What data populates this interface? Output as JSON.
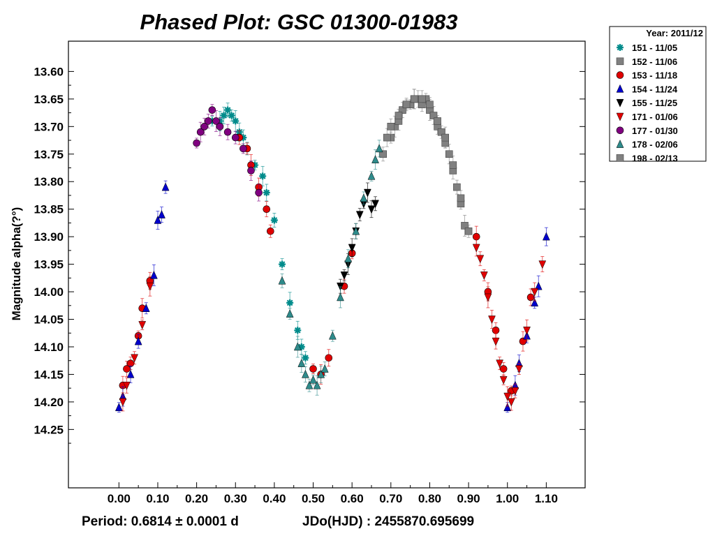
{
  "chart_data": {
    "type": "scatter",
    "title": "Phased Plot: GSC 01300-01983",
    "xlabel": "",
    "ylabel": "Magnitude alpha(?°)",
    "xlim": [
      -0.13,
      1.2
    ],
    "ylim": [
      14.356,
      13.545
    ],
    "y_inverted": true,
    "x_ticks": [
      "0.00",
      "0.10",
      "0.20",
      "0.30",
      "0.40",
      "0.50",
      "0.60",
      "0.70",
      "0.80",
      "0.90",
      "1.00",
      "1.10"
    ],
    "y_ticks": [
      "13.60",
      "13.65",
      "13.70",
      "13.75",
      "13.80",
      "13.85",
      "13.90",
      "13.95",
      "14.00",
      "14.05",
      "14.10",
      "14.15",
      "14.20",
      "14.25"
    ],
    "legend_title": "Year: 2011/12",
    "legend_position": "outside-top-right",
    "footer_period": "Period: 0.6814 ± 0.0001 d",
    "footer_epoch": "JDo(HJD) : 2455870.695699",
    "grid": false,
    "series": [
      {
        "name": "151 - 11/05",
        "marker": "asterisk",
        "color": "#008b8b",
        "x": [
          0.24,
          0.26,
          0.27,
          0.28,
          0.29,
          0.3,
          0.31,
          0.32,
          0.33,
          0.35,
          0.37,
          0.38,
          0.4,
          0.42,
          0.44,
          0.46,
          0.47,
          0.48
        ],
        "y": [
          13.69,
          13.69,
          13.68,
          13.67,
          13.68,
          13.69,
          13.71,
          13.72,
          13.74,
          13.77,
          13.79,
          13.82,
          13.87,
          13.95,
          14.02,
          14.07,
          14.1,
          14.12
        ]
      },
      {
        "name": "152 - 11/06",
        "marker": "square",
        "color": "#808080",
        "x": [
          0.68,
          0.7,
          0.71,
          0.72,
          0.73,
          0.74,
          0.75,
          0.76,
          0.77,
          0.78,
          0.79,
          0.8,
          0.81,
          0.82,
          0.83,
          0.84,
          0.85,
          0.86,
          0.87,
          0.88,
          0.89
        ],
        "y": [
          13.75,
          13.72,
          13.7,
          13.69,
          13.67,
          13.66,
          13.66,
          13.65,
          13.65,
          13.66,
          13.65,
          13.67,
          13.68,
          13.7,
          13.71,
          13.73,
          13.75,
          13.78,
          13.81,
          13.84,
          13.88
        ]
      },
      {
        "name": "153 - 11/18",
        "marker": "circle",
        "color": "#e00000",
        "x": [
          0.01,
          0.02,
          0.03,
          0.05,
          0.06,
          0.08,
          0.31,
          0.33,
          0.34,
          0.36,
          0.38,
          0.39,
          0.5,
          0.52,
          0.54,
          0.58,
          0.6,
          0.92,
          0.95,
          0.97,
          0.99,
          1.01,
          1.04,
          1.06
        ],
        "y": [
          14.17,
          14.14,
          14.13,
          14.08,
          14.03,
          13.98,
          13.72,
          13.74,
          13.77,
          13.81,
          13.85,
          13.89,
          14.14,
          14.15,
          14.12,
          13.99,
          13.93,
          13.9,
          14.0,
          14.07,
          14.14,
          14.18,
          14.09,
          14.01
        ]
      },
      {
        "name": "154 - 11/24",
        "marker": "triangle-up",
        "color": "#0000cc",
        "x": [
          0.0,
          0.01,
          0.03,
          0.05,
          0.07,
          0.09,
          0.1,
          0.11,
          0.12,
          1.0,
          1.02,
          1.03,
          1.05,
          1.07,
          1.08,
          1.1
        ],
        "y": [
          14.21,
          14.19,
          14.15,
          14.09,
          14.03,
          13.97,
          13.87,
          13.86,
          13.81,
          14.21,
          14.17,
          14.13,
          14.08,
          14.02,
          13.99,
          13.9
        ]
      },
      {
        "name": "155 - 11/25",
        "marker": "triangle-down",
        "color": "#000000",
        "x": [
          0.57,
          0.58,
          0.59,
          0.6,
          0.61,
          0.62,
          0.63,
          0.64,
          0.65,
          0.66
        ],
        "y": [
          13.99,
          13.97,
          13.95,
          13.92,
          13.89,
          13.86,
          13.84,
          13.82,
          13.85,
          13.84
        ]
      },
      {
        "name": "171 - 01/06",
        "marker": "triangle-down",
        "color": "#e00000",
        "x": [
          0.01,
          0.02,
          0.04,
          0.06,
          0.08,
          0.92,
          0.93,
          0.94,
          0.95,
          0.96,
          0.97,
          0.98,
          0.99,
          1.0,
          1.01,
          1.02,
          1.03,
          1.05,
          1.07,
          1.09
        ],
        "y": [
          14.2,
          14.17,
          14.12,
          14.06,
          13.99,
          13.92,
          13.94,
          13.97,
          14.01,
          14.05,
          14.09,
          14.13,
          14.16,
          14.19,
          14.2,
          14.18,
          14.14,
          14.07,
          14.0,
          13.95
        ]
      },
      {
        "name": "177 - 01/30",
        "marker": "circle",
        "color": "#800080",
        "x": [
          0.2,
          0.21,
          0.22,
          0.23,
          0.24,
          0.25,
          0.26,
          0.28,
          0.3,
          0.32,
          0.34,
          0.36
        ],
        "y": [
          13.73,
          13.71,
          13.7,
          13.69,
          13.67,
          13.69,
          13.7,
          13.71,
          13.72,
          13.74,
          13.78,
          13.82
        ]
      },
      {
        "name": "178 - 02/06",
        "marker": "triangle-up",
        "color": "#2e8b8b",
        "x": [
          0.42,
          0.44,
          0.46,
          0.47,
          0.48,
          0.49,
          0.5,
          0.51,
          0.52,
          0.53,
          0.55,
          0.57,
          0.59,
          0.61,
          0.63,
          0.65,
          0.66,
          0.67
        ],
        "y": [
          13.98,
          14.04,
          14.1,
          14.13,
          14.15,
          14.17,
          14.16,
          14.17,
          14.15,
          14.14,
          14.08,
          14.01,
          13.94,
          13.89,
          13.83,
          13.79,
          13.76,
          13.74
        ]
      },
      {
        "name": "198 - 02/13",
        "marker": "square",
        "color": "#808080",
        "x": [
          0.69,
          0.7,
          0.72,
          0.74,
          0.76,
          0.78,
          0.8,
          0.82,
          0.84,
          0.86,
          0.88,
          0.9
        ],
        "y": [
          13.72,
          13.7,
          13.68,
          13.66,
          13.65,
          13.65,
          13.66,
          13.69,
          13.72,
          13.77,
          13.83,
          13.89
        ]
      }
    ]
  }
}
